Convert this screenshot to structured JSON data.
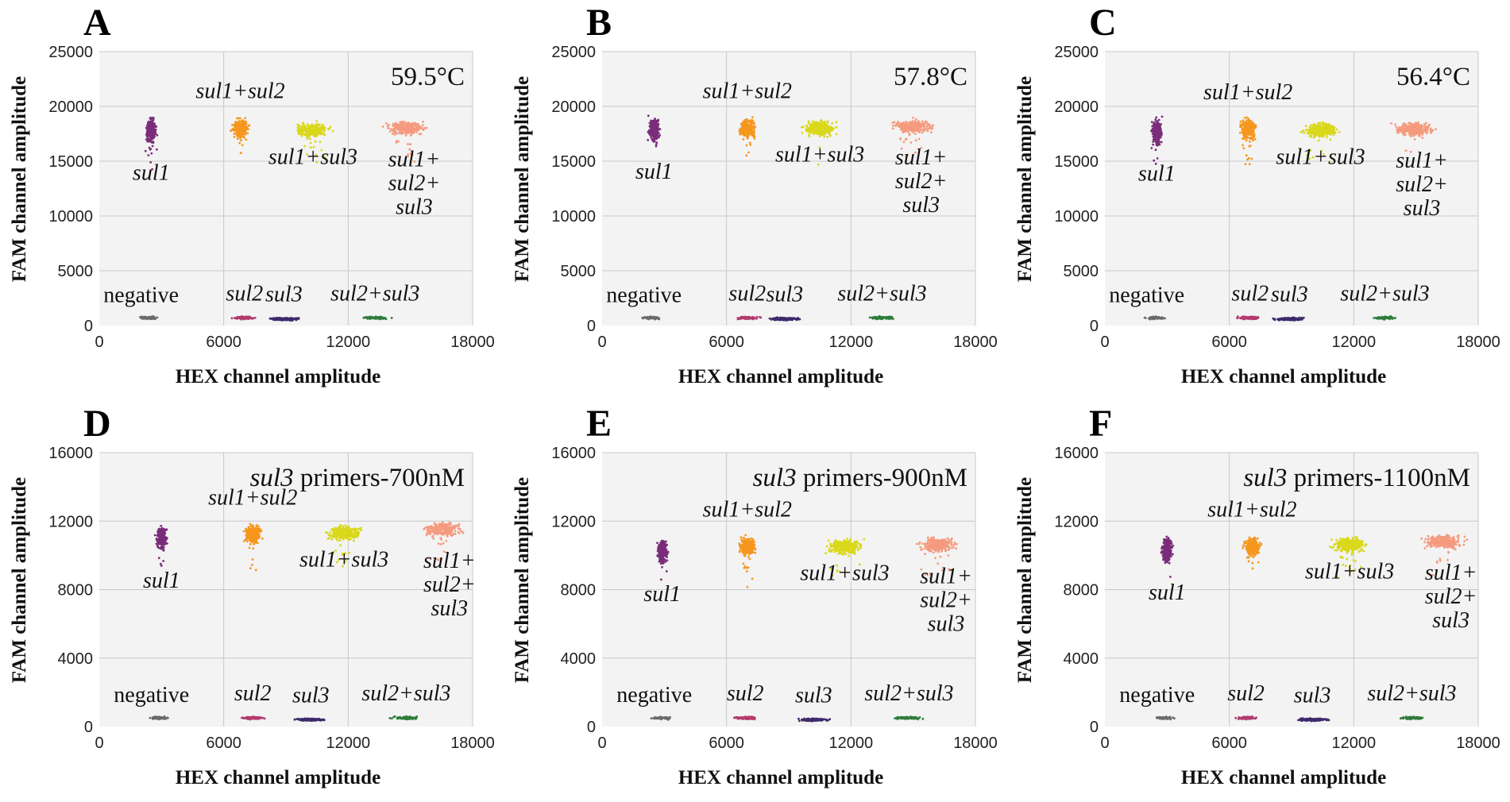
{
  "figure": {
    "x_axis_title": "HEX channel amplitude",
    "y_axis_title": "FAM channel amplitude"
  },
  "cluster_colors": {
    "negative": "#6b6b6b",
    "sul1": "#7a2d7a",
    "sul2": "#b33a6e",
    "sul3": "#3d2a6b",
    "sul1+sul2": "#f5961e",
    "sul1+sul3": "#d9d81a",
    "sul2+sul3": "#2e7d3a",
    "sul1+sul2+sul3": "#f59a7e"
  },
  "chart_data": [
    {
      "panel": "A",
      "type": "scatter",
      "condition": "59.5°C",
      "xlim": [
        0,
        18000
      ],
      "ylim": [
        0,
        25000
      ],
      "xticks": [
        0,
        6000,
        12000,
        18000
      ],
      "yticks": [
        0,
        5000,
        10000,
        15000,
        20000,
        25000
      ],
      "clusters": [
        {
          "name": "negative",
          "label": "negative",
          "x": 2400,
          "y": 700
        },
        {
          "name": "sul1",
          "label": "sul1",
          "x": 2500,
          "y": 17800
        },
        {
          "name": "sul2",
          "label": "sul2",
          "x": 7000,
          "y": 700
        },
        {
          "name": "sul3",
          "label": "sul3",
          "x": 8900,
          "y": 600
        },
        {
          "name": "sul1+sul2",
          "label": "sul1+sul2",
          "x": 6800,
          "y": 18000
        },
        {
          "name": "sul1+sul3",
          "label": "sul1+sul3",
          "x": 10300,
          "y": 17800
        },
        {
          "name": "sul2+sul3",
          "label": "sul2+sul3",
          "x": 13300,
          "y": 700
        },
        {
          "name": "sul1+sul2+sul3",
          "label": [
            "sul1+",
            "sul2+",
            "sul3"
          ],
          "x": 14800,
          "y": 18000
        }
      ]
    },
    {
      "panel": "B",
      "type": "scatter",
      "condition": "57.8°C",
      "xlim": [
        0,
        18000
      ],
      "ylim": [
        0,
        25000
      ],
      "xticks": [
        0,
        6000,
        12000,
        18000
      ],
      "yticks": [
        0,
        5000,
        10000,
        15000,
        20000,
        25000
      ],
      "clusters": [
        {
          "name": "negative",
          "label": "negative",
          "x": 2400,
          "y": 700
        },
        {
          "name": "sul1",
          "label": "sul1",
          "x": 2500,
          "y": 17900
        },
        {
          "name": "sul2",
          "label": "sul2",
          "x": 7000,
          "y": 700
        },
        {
          "name": "sul3",
          "label": "sul3",
          "x": 8800,
          "y": 600
        },
        {
          "name": "sul1+sul2",
          "label": "sul1+sul2",
          "x": 7000,
          "y": 18000
        },
        {
          "name": "sul1+sul3",
          "label": "sul1+sul3",
          "x": 10500,
          "y": 18000
        },
        {
          "name": "sul2+sul3",
          "label": "sul2+sul3",
          "x": 13500,
          "y": 700
        },
        {
          "name": "sul1+sul2+sul3",
          "label": [
            "sul1+",
            "sul2+",
            "sul3"
          ],
          "x": 15000,
          "y": 18200
        }
      ]
    },
    {
      "panel": "C",
      "type": "scatter",
      "condition": "56.4°C",
      "xlim": [
        0,
        18000
      ],
      "ylim": [
        0,
        25000
      ],
      "xticks": [
        0,
        6000,
        12000,
        18000
      ],
      "yticks": [
        0,
        5000,
        10000,
        15000,
        20000,
        25000
      ],
      "clusters": [
        {
          "name": "negative",
          "label": "negative",
          "x": 2400,
          "y": 700
        },
        {
          "name": "sul1",
          "label": "sul1",
          "x": 2500,
          "y": 17700
        },
        {
          "name": "sul2",
          "label": "sul2",
          "x": 7000,
          "y": 700
        },
        {
          "name": "sul3",
          "label": "sul3",
          "x": 8900,
          "y": 600
        },
        {
          "name": "sul1+sul2",
          "label": "sul1+sul2",
          "x": 6900,
          "y": 17900
        },
        {
          "name": "sul1+sul3",
          "label": "sul1+sul3",
          "x": 10400,
          "y": 17800
        },
        {
          "name": "sul2+sul3",
          "label": "sul2+sul3",
          "x": 13500,
          "y": 700
        },
        {
          "name": "sul1+sul2+sul3",
          "label": [
            "sul1+",
            "sul2+",
            "sul3"
          ],
          "x": 14900,
          "y": 17900
        }
      ]
    },
    {
      "panel": "D",
      "type": "scatter",
      "condition_italic": "sul3",
      "condition": " primers-700nM",
      "xlim": [
        0,
        18000
      ],
      "ylim": [
        0,
        16000
      ],
      "xticks": [
        0,
        6000,
        12000,
        18000
      ],
      "yticks": [
        0,
        4000,
        8000,
        12000,
        16000
      ],
      "clusters": [
        {
          "name": "negative",
          "label": "negative",
          "x": 2900,
          "y": 500
        },
        {
          "name": "sul1",
          "label": "sul1",
          "x": 3000,
          "y": 11000
        },
        {
          "name": "sul2",
          "label": "sul2",
          "x": 7400,
          "y": 500
        },
        {
          "name": "sul3",
          "label": "sul3",
          "x": 10200,
          "y": 400
        },
        {
          "name": "sul1+sul2",
          "label": "sul1+sul2",
          "x": 7400,
          "y": 11200
        },
        {
          "name": "sul1+sul3",
          "label": "sul1+sul3",
          "x": 11800,
          "y": 11300
        },
        {
          "name": "sul2+sul3",
          "label": "sul2+sul3",
          "x": 14800,
          "y": 500
        },
        {
          "name": "sul1+sul2+sul3",
          "label": [
            "sul1+",
            "sul2+",
            "sul3"
          ],
          "x": 16500,
          "y": 11500
        }
      ]
    },
    {
      "panel": "E",
      "type": "scatter",
      "condition_italic": "sul3",
      "condition": " primers-900nM",
      "xlim": [
        0,
        18000
      ],
      "ylim": [
        0,
        16000
      ],
      "xticks": [
        0,
        6000,
        12000,
        18000
      ],
      "yticks": [
        0,
        4000,
        8000,
        12000,
        16000
      ],
      "clusters": [
        {
          "name": "negative",
          "label": "negative",
          "x": 2900,
          "y": 500
        },
        {
          "name": "sul1",
          "label": "sul1",
          "x": 2900,
          "y": 10200
        },
        {
          "name": "sul2",
          "label": "sul2",
          "x": 6900,
          "y": 500
        },
        {
          "name": "sul3",
          "label": "sul3",
          "x": 10200,
          "y": 400
        },
        {
          "name": "sul1+sul2",
          "label": "sul1+sul2",
          "x": 7000,
          "y": 10500
        },
        {
          "name": "sul1+sul3",
          "label": "sul1+sul3",
          "x": 11700,
          "y": 10500
        },
        {
          "name": "sul2+sul3",
          "label": "sul2+sul3",
          "x": 14800,
          "y": 500
        },
        {
          "name": "sul1+sul2+sul3",
          "label": [
            "sul1+",
            "sul2+",
            "sul3"
          ],
          "x": 16200,
          "y": 10600
        }
      ]
    },
    {
      "panel": "F",
      "type": "scatter",
      "condition_italic": "sul3",
      "condition": " primers-1100nM",
      "xlim": [
        0,
        18000
      ],
      "ylim": [
        0,
        16000
      ],
      "xticks": [
        0,
        6000,
        12000,
        18000
      ],
      "yticks": [
        0,
        4000,
        8000,
        12000,
        16000
      ],
      "clusters": [
        {
          "name": "negative",
          "label": "negative",
          "x": 2900,
          "y": 500
        },
        {
          "name": "sul1",
          "label": "sul1",
          "x": 3000,
          "y": 10300
        },
        {
          "name": "sul2",
          "label": "sul2",
          "x": 6800,
          "y": 500
        },
        {
          "name": "sul3",
          "label": "sul3",
          "x": 10000,
          "y": 400
        },
        {
          "name": "sul1+sul2",
          "label": "sul1+sul2",
          "x": 7100,
          "y": 10500
        },
        {
          "name": "sul1+sul3",
          "label": "sul1+sul3",
          "x": 11800,
          "y": 10600
        },
        {
          "name": "sul2+sul3",
          "label": "sul2+sul3",
          "x": 14800,
          "y": 500
        },
        {
          "name": "sul1+sul2+sul3",
          "label": [
            "sul1+",
            "sul2+",
            "sul3"
          ],
          "x": 16300,
          "y": 10800
        }
      ]
    }
  ]
}
